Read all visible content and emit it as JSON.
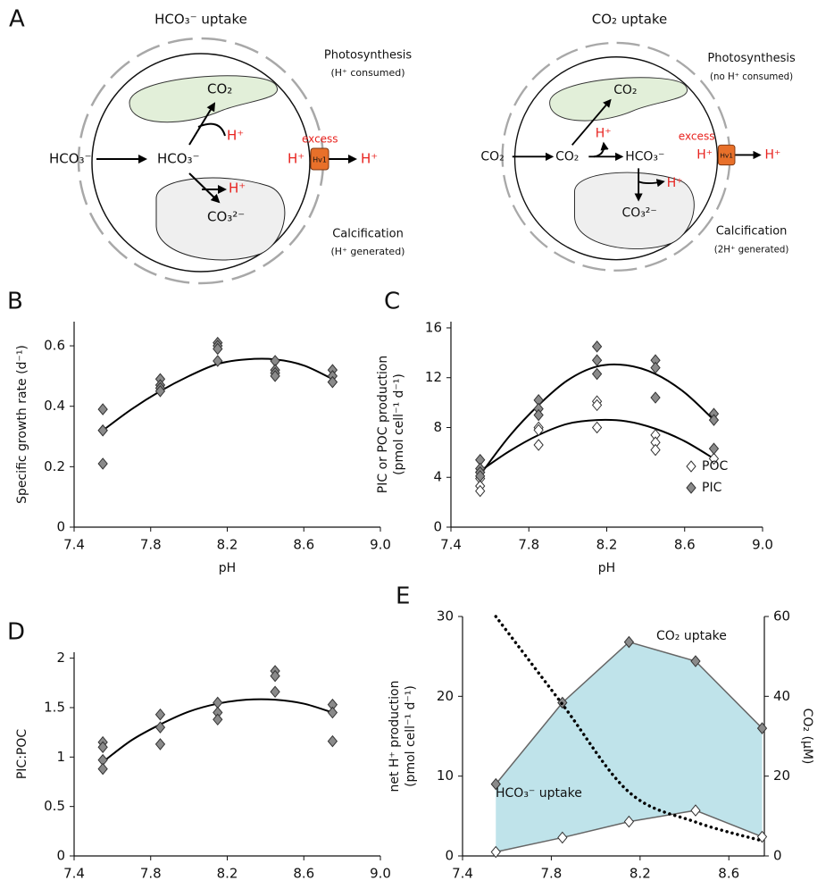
{
  "diagram": {
    "label": "A",
    "cells": [
      {
        "title": "HCO₃⁻ uptake",
        "photosynthesis": "Photosynthesis",
        "photosynthesis_note": "(H⁺ consumed)",
        "calcification": "Calcification",
        "calcification_note": "(H⁺ generated)",
        "excess": "excess",
        "channel": "Hv1",
        "species": [
          "HCO₃⁻",
          "HCO₃⁻",
          "CO₂",
          "H⁺",
          "H⁺",
          "CO₃²⁻",
          "H⁺",
          "H⁺"
        ]
      },
      {
        "title": "CO₂ uptake",
        "photosynthesis": "Photosynthesis",
        "photosynthesis_note": "(no H⁺ consumed)",
        "calcification": "Calcification",
        "calcification_note": "(2H⁺ generated)",
        "excess": "excess",
        "channel": "Hv1",
        "species": [
          "CO₂",
          "CO₂",
          "CO₂",
          "H⁺",
          "HCO₃⁻",
          "H⁺",
          "CO₃²⁻",
          "H⁺",
          "H⁺"
        ]
      }
    ]
  },
  "chart_data": [
    {
      "type": "scatter",
      "label": "B",
      "xlabel": "pH",
      "ylabel": "Specific growth rate (d⁻¹)",
      "xlim": [
        7.4,
        9.0
      ],
      "xticks": [
        7.4,
        7.8,
        8.2,
        8.6,
        {
          "value": 9.0,
          "label": "9.0"
        }
      ],
      "ylim": [
        0,
        0.68
      ],
      "yticks": [
        0,
        0.2,
        0.4,
        0.6
      ],
      "series": [
        {
          "color": "#8a8a8a",
          "x": [
            7.55,
            7.55,
            7.55,
            7.55,
            7.85,
            7.85,
            7.85,
            7.85,
            8.15,
            8.15,
            8.15,
            8.15,
            8.45,
            8.45,
            8.45,
            8.45,
            8.75,
            8.75,
            8.75,
            8.75
          ],
          "values": [
            0.39,
            0.32,
            0.32,
            0.21,
            0.49,
            0.47,
            0.46,
            0.45,
            0.61,
            0.6,
            0.59,
            0.55,
            0.55,
            0.52,
            0.51,
            0.5,
            0.52,
            0.5,
            0.48,
            0.48
          ]
        }
      ],
      "fits": [
        {
          "x": [
            7.55,
            7.7,
            7.85,
            8.0,
            8.15,
            8.3,
            8.45,
            8.6,
            8.75
          ],
          "values": [
            0.32,
            0.39,
            0.45,
            0.5,
            0.54,
            0.555,
            0.555,
            0.535,
            0.49
          ]
        }
      ]
    },
    {
      "type": "scatter",
      "label": "C",
      "xlabel": "pH",
      "ylabel": [
        "PIC or POC production",
        "(pmol cell⁻¹ d⁻¹)"
      ],
      "xlim": [
        7.4,
        9.0
      ],
      "xticks": [
        7.4,
        7.8,
        8.2,
        8.6,
        {
          "value": 9.0,
          "label": "9.0"
        }
      ],
      "ylim": [
        0,
        16.5
      ],
      "yticks": [
        0,
        4,
        8,
        12,
        16
      ],
      "legend": "lower right",
      "series": [
        {
          "name": "POC",
          "color": "#ffffff",
          "x": [
            7.55,
            7.55,
            7.55,
            7.55,
            7.85,
            7.85,
            7.85,
            8.15,
            8.15,
            8.15,
            8.45,
            8.45,
            8.45,
            8.75
          ],
          "values": [
            4.4,
            3.9,
            3.3,
            2.9,
            8.0,
            7.8,
            6.6,
            10.1,
            9.8,
            8.0,
            7.4,
            6.8,
            6.2,
            5.5
          ]
        },
        {
          "name": "PIC",
          "color": "#8a8a8a",
          "x": [
            7.55,
            7.55,
            7.55,
            7.55,
            7.85,
            7.85,
            7.85,
            8.15,
            8.15,
            8.15,
            8.45,
            8.45,
            8.45,
            8.75,
            8.75,
            8.75
          ],
          "values": [
            5.4,
            4.7,
            4.4,
            4.1,
            10.2,
            9.5,
            9.0,
            14.5,
            13.4,
            12.3,
            13.4,
            12.8,
            10.4,
            9.1,
            8.6,
            6.3
          ]
        }
      ],
      "fits": [
        {
          "x": [
            7.55,
            7.7,
            7.85,
            8.0,
            8.15,
            8.3,
            8.45,
            8.6,
            8.75
          ],
          "values": [
            4.5,
            6.1,
            7.4,
            8.3,
            8.6,
            8.5,
            7.9,
            6.9,
            5.5
          ]
        },
        {
          "x": [
            7.55,
            7.7,
            7.85,
            8.0,
            8.15,
            8.3,
            8.45,
            8.6,
            8.75
          ],
          "values": [
            4.2,
            7.3,
            9.8,
            11.8,
            12.9,
            13.0,
            12.3,
            10.8,
            8.6
          ]
        }
      ]
    },
    {
      "type": "scatter",
      "label": "D",
      "xlabel": "pH",
      "ylabel": "PIC:POC",
      "xlim": [
        7.4,
        9.0
      ],
      "xticks": [
        7.4,
        7.8,
        8.2,
        8.6,
        {
          "value": 9.0,
          "label": "9.0"
        }
      ],
      "ylim": [
        0,
        2.06
      ],
      "yticks": [
        0,
        0.5,
        1,
        1.5,
        2
      ],
      "series": [
        {
          "color": "#8a8a8a",
          "x": [
            7.55,
            7.55,
            7.55,
            7.55,
            7.85,
            7.85,
            7.85,
            8.15,
            8.15,
            8.15,
            8.45,
            8.45,
            8.45,
            8.75,
            8.75,
            8.75
          ],
          "values": [
            1.15,
            1.1,
            0.97,
            0.88,
            1.43,
            1.3,
            1.13,
            1.55,
            1.45,
            1.38,
            1.87,
            1.82,
            1.66,
            1.53,
            1.45,
            1.16
          ]
        }
      ],
      "fits": [
        {
          "x": [
            7.55,
            7.7,
            7.85,
            8.0,
            8.15,
            8.3,
            8.45,
            8.6,
            8.75
          ],
          "values": [
            0.95,
            1.17,
            1.33,
            1.46,
            1.54,
            1.58,
            1.58,
            1.54,
            1.45
          ]
        }
      ]
    },
    {
      "type": "line",
      "label": "E",
      "xlabel": "pH",
      "ylabel": [
        "net H⁺ production",
        "(pmol cell⁻¹ d⁻¹)"
      ],
      "y2label": "CO₂ (µM)",
      "xlim": [
        7.4,
        8.76
      ],
      "xticks": [
        7.4,
        7.8,
        8.2,
        8.6
      ],
      "ylim": [
        0,
        30
      ],
      "yticks": [
        0,
        10,
        20,
        30
      ],
      "y2lim": [
        0,
        60
      ],
      "y2ticks": [
        0,
        20,
        40,
        60
      ],
      "fill_between": "#bfe3ea",
      "x": [
        7.55,
        7.85,
        8.15,
        8.45,
        8.75
      ],
      "series": [
        {
          "name": "CO₂ uptake",
          "color": "#8a8a8a",
          "line_color": "#666666",
          "values": [
            9,
            19.2,
            26.8,
            24.4,
            16
          ]
        },
        {
          "name": "HCO₃⁻ uptake",
          "color": "#ffffff",
          "line_color": "#666666",
          "values": [
            0.5,
            2.3,
            4.3,
            5.7,
            2.4
          ]
        },
        {
          "color": "#000000",
          "dash": "dotted",
          "axis": "y2",
          "values": [
            60,
            38,
            16,
            8.5,
            3.8
          ]
        }
      ]
    }
  ]
}
